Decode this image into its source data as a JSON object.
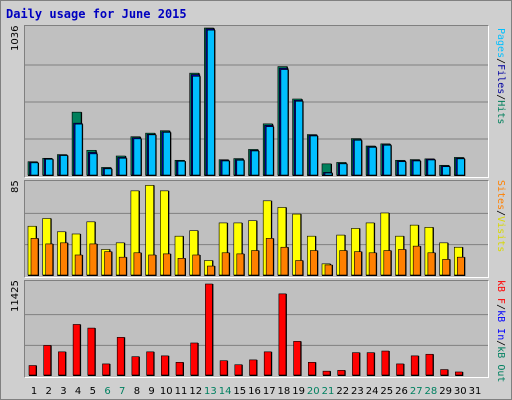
{
  "title": "Daily usage for June 2015",
  "colors": {
    "pages": "#00bfff",
    "files": "#0000a0",
    "hits": "#00805c",
    "visits": "#ffff00",
    "sites": "#ff8000",
    "kb_f": "#ff0000",
    "kb_in": "#0000ff",
    "kb_out": "#008060",
    "weekend": "#008060",
    "weekday": "#000000",
    "grid": "#808080"
  },
  "right_labels": {
    "top": [
      {
        "text": "Pages",
        "color": "#00bfff"
      },
      {
        "text": "/",
        "color": "#000000"
      },
      {
        "text": "Files",
        "color": "#0000a0"
      },
      {
        "text": "/",
        "color": "#000000"
      },
      {
        "text": "Hits",
        "color": "#00805c"
      }
    ],
    "middle": [
      {
        "text": "Sites",
        "color": "#ff8000"
      },
      {
        "text": "/",
        "color": "#000000"
      },
      {
        "text": "Visits",
        "color": "#d8d800"
      }
    ],
    "bottom": [
      {
        "text": "kB F",
        "color": "#ff0000"
      },
      {
        "text": "/",
        "color": "#000000"
      },
      {
        "text": "kB In",
        "color": "#0000ff"
      },
      {
        "text": "/",
        "color": "#000000"
      },
      {
        "text": "kB Out",
        "color": "#008060"
      }
    ]
  },
  "chart_data": [
    {
      "type": "bar",
      "title": "Daily usage for June 2015",
      "categories": [
        "1",
        "2",
        "3",
        "4",
        "5",
        "6",
        "7",
        "8",
        "9",
        "10",
        "11",
        "12",
        "13",
        "14",
        "15",
        "16",
        "17",
        "18",
        "19",
        "20",
        "21",
        "22",
        "23",
        "24",
        "25",
        "26",
        "27",
        "28",
        "29",
        "30",
        "31"
      ],
      "weekend_days": [
        "6",
        "7",
        "13",
        "14",
        "20",
        "21",
        "27",
        "28"
      ],
      "ylabel": "Pages / Files / Hits",
      "ylim": [
        0,
        1036
      ],
      "ymax_label": "1036",
      "series": [
        {
          "name": "Hits",
          "values": [
            100,
            124,
            150,
            447,
            180,
            60,
            140,
            275,
            300,
            317,
            110,
            720,
            1036,
            114,
            122,
            186,
            365,
            766,
            539,
            290,
            85,
            95,
            262,
            210,
            225,
            110,
            115,
            120,
            75,
            130,
            0
          ]
        },
        {
          "name": "Files",
          "values": [
            95,
            120,
            146,
            370,
            165,
            55,
            130,
            268,
            292,
            310,
            105,
            710,
            1030,
            110,
            115,
            180,
            355,
            755,
            530,
            285,
            25,
            88,
            255,
            205,
            220,
            105,
            110,
            118,
            70,
            125,
            0
          ]
        },
        {
          "name": "Pages",
          "values": [
            92,
            117,
            143,
            363,
            155,
            50,
            124,
            260,
            288,
            305,
            103,
            698,
            1021,
            105,
            110,
            175,
            345,
            745,
            523,
            280,
            20,
            85,
            250,
            200,
            215,
            100,
            105,
            112,
            65,
            120,
            0
          ]
        }
      ]
    },
    {
      "type": "bar",
      "categories": [
        "1",
        "2",
        "3",
        "4",
        "5",
        "6",
        "7",
        "8",
        "9",
        "10",
        "11",
        "12",
        "13",
        "14",
        "15",
        "16",
        "17",
        "18",
        "19",
        "20",
        "21",
        "22",
        "23",
        "24",
        "25",
        "26",
        "27",
        "28",
        "29",
        "30",
        "31"
      ],
      "ylabel": "Sites / Visits",
      "ylim": [
        0,
        85
      ],
      "ymax_label": "85",
      "series": [
        {
          "name": "Visits",
          "values": [
            45,
            52,
            40,
            38,
            49,
            24,
            30,
            77,
            82,
            77,
            36,
            41,
            14,
            48,
            48,
            50,
            68,
            62,
            56,
            36,
            11,
            37,
            43,
            48,
            57,
            36,
            46,
            44,
            30,
            26,
            0
          ]
        },
        {
          "name": "Sites",
          "values": [
            34,
            29,
            30,
            19,
            29,
            22,
            17,
            21,
            19,
            20,
            16,
            19,
            9,
            21,
            20,
            23,
            34,
            26,
            14,
            23,
            10,
            23,
            22,
            21,
            23,
            24,
            27,
            21,
            15,
            17,
            0
          ]
        }
      ]
    },
    {
      "type": "bar",
      "categories": [
        "1",
        "2",
        "3",
        "4",
        "5",
        "6",
        "7",
        "8",
        "9",
        "10",
        "11",
        "12",
        "13",
        "14",
        "15",
        "16",
        "17",
        "18",
        "19",
        "20",
        "21",
        "22",
        "23",
        "24",
        "25",
        "26",
        "27",
        "28",
        "29",
        "30",
        "31"
      ],
      "ylabel": "kB F / kB In / kB Out",
      "ylim": [
        0,
        11425
      ],
      "ymax_label": "11425",
      "series": [
        {
          "name": "kB F",
          "values": [
            1300,
            3800,
            3000,
            6400,
            5950,
            1500,
            4800,
            2400,
            3000,
            2500,
            1700,
            4100,
            11425,
            1900,
            1400,
            2000,
            3000,
            10200,
            4300,
            1700,
            600,
            700,
            2900,
            2900,
            3100,
            1500,
            2500,
            2700,
            800,
            500,
            0
          ]
        }
      ]
    }
  ]
}
